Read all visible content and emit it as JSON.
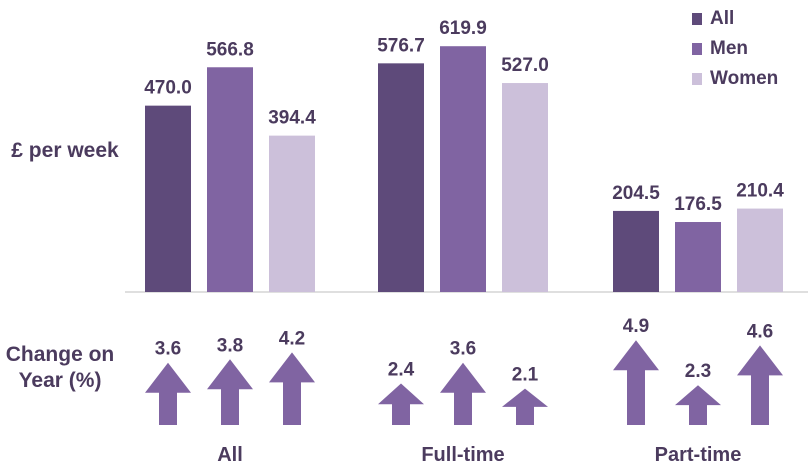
{
  "chart_data": {
    "type": "bar",
    "categories": [
      "All",
      "Full-time",
      "Part-time"
    ],
    "series": [
      {
        "name": "All",
        "color": "#5e4a7a",
        "values": [
          470.0,
          576.7,
          204.5
        ],
        "change": [
          3.6,
          2.4,
          4.9
        ]
      },
      {
        "name": "Men",
        "color": "#8064a2",
        "values": [
          566.8,
          619.9,
          176.5
        ],
        "change": [
          3.8,
          3.6,
          2.3
        ]
      },
      {
        "name": "Women",
        "color": "#ccc0da",
        "values": [
          394.4,
          527.0,
          210.4
        ],
        "change": [
          4.2,
          2.1,
          4.6
        ]
      }
    ],
    "ylabel": "£ per week",
    "change_label": "Change on Year (%)",
    "ylim": [
      0,
      650
    ],
    "grid": false,
    "legend_position": "top-right",
    "arrow_color": "#8064a2",
    "text_color": "#4b3b5e"
  }
}
